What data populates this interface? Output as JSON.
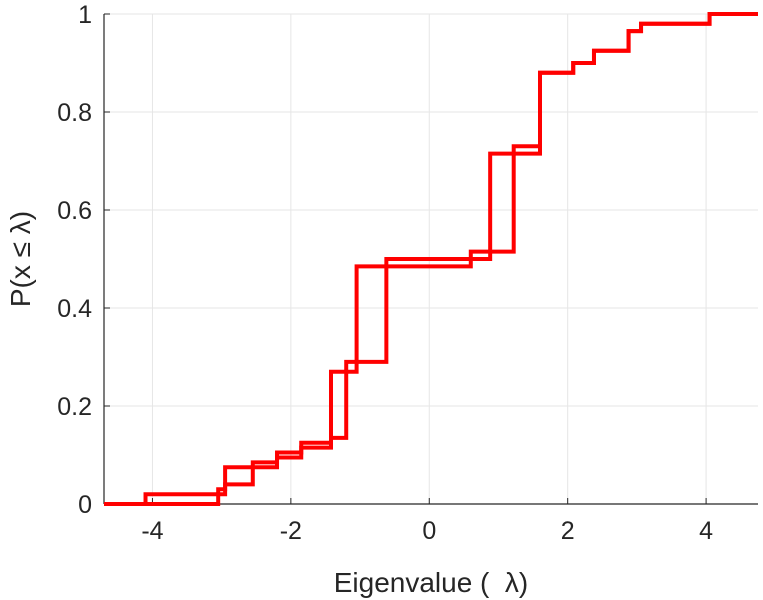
{
  "chart_data": {
    "type": "line",
    "title": "",
    "xlabel": "Eigenvalue (  λ)",
    "ylabel": "P(x ≤ λ)",
    "xlim": [
      -4.7,
      4.75
    ],
    "ylim": [
      0,
      1
    ],
    "grid": true,
    "xticks": [
      -4,
      -2,
      0,
      2,
      4
    ],
    "xtick_labels": [
      "-4",
      "-2",
      "0",
      "2",
      "4"
    ],
    "yticks": [
      0,
      0.2,
      0.4,
      0.6,
      0.8,
      1
    ],
    "ytick_labels": [
      "0",
      "0.2",
      "0.4",
      "0.6",
      "0.8",
      "1"
    ],
    "line_color": "#ff0000",
    "series": [
      {
        "x": [
          -4.7,
          -4.1,
          -4.1,
          -3.05,
          -3.05,
          -2.95,
          -2.95,
          -2.55,
          -2.55,
          -2.2,
          -2.2,
          -1.85,
          -1.85,
          -1.42,
          -1.42,
          -1.2,
          -1.2,
          -1.05,
          -1.05,
          -0.62,
          -0.62,
          0.6,
          0.6,
          0.88,
          0.88,
          1.22,
          1.22,
          1.6,
          1.6,
          2.08,
          2.08,
          2.38,
          2.38,
          2.88,
          2.88,
          3.06,
          3.06,
          4.05,
          4.05,
          4.75
        ],
        "y": [
          0,
          0,
          0.02,
          0.02,
          0.03,
          0.03,
          0.075,
          0.075,
          0.085,
          0.085,
          0.105,
          0.105,
          0.125,
          0.125,
          0.27,
          0.27,
          0.29,
          0.29,
          0.485,
          0.485,
          0.5,
          0.5,
          0.515,
          0.515,
          0.715,
          0.715,
          0.73,
          0.73,
          0.88,
          0.88,
          0.9,
          0.9,
          0.925,
          0.925,
          0.965,
          0.965,
          0.98,
          0.98,
          1,
          1
        ]
      },
      {
        "x": [
          -4.7,
          -4.1,
          -4.1,
          -3.05,
          -3.05,
          -2.95,
          -2.95,
          -2.55,
          -2.55,
          -2.2,
          -2.2,
          -1.85,
          -1.85,
          -1.42,
          -1.42,
          -1.2,
          -1.2,
          -1.05,
          -1.05,
          -0.62,
          -0.62,
          0.6,
          0.6,
          0.88,
          0.88,
          1.22,
          1.22,
          1.6,
          1.6,
          2.08,
          2.08,
          2.38,
          2.38,
          2.88,
          2.88,
          3.06,
          3.06,
          4.05,
          4.05,
          4.75
        ],
        "y": [
          0,
          0,
          0.0,
          0.0,
          0.02,
          0.02,
          0.04,
          0.04,
          0.075,
          0.075,
          0.095,
          0.095,
          0.115,
          0.115,
          0.135,
          0.135,
          0.27,
          0.27,
          0.29,
          0.29,
          0.485,
          0.485,
          0.5,
          0.5,
          0.515,
          0.515,
          0.715,
          0.715,
          0.88,
          0.88,
          0.9,
          0.9,
          0.925,
          0.925,
          0.965,
          0.965,
          0.98,
          0.98,
          1,
          1
        ]
      }
    ]
  }
}
